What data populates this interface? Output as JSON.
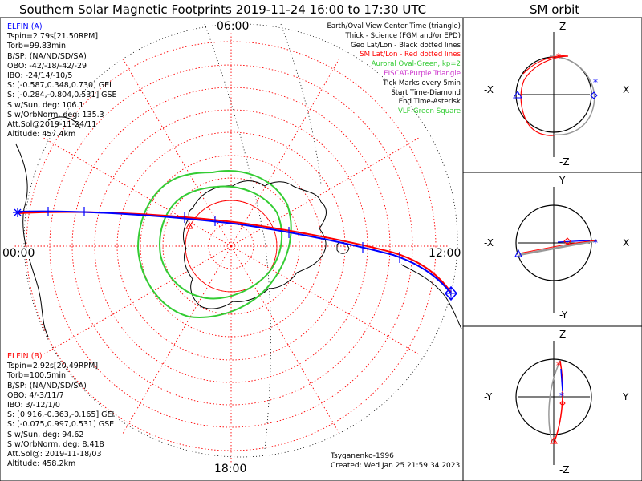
{
  "title": "Southern Solar Magnetic Footprints 2019-11-24 16:00 to 17:30 UTC",
  "orbit_title": "SM orbit",
  "hours": {
    "top": "06:00",
    "left": "00:00",
    "right": "12:00",
    "bottom": "18:00"
  },
  "legend": [
    {
      "text": "Earth/Oval View Center Time (triangle)",
      "color": "#000000"
    },
    {
      "text": "Thick - Science (FGM and/or EPD)",
      "color": "#000000"
    },
    {
      "text": "Geo Lat/Lon - Black dotted lines",
      "color": "#000000"
    },
    {
      "text": "SM Lat/Lon - Red dotted lines",
      "color": "#ff0000"
    },
    {
      "text": "Auroral Oval-Green, kp=2",
      "color": "#33cc33"
    },
    {
      "text": "EISCAT-Purple Triangle",
      "color": "#cc33cc"
    },
    {
      "text": "Tick Marks every 5min",
      "color": "#000000"
    },
    {
      "text": "Start Time-Diamond",
      "color": "#000000"
    },
    {
      "text": "End Time-Asterisk",
      "color": "#000000"
    },
    {
      "text": "VLF-Green Square",
      "color": "#33cc33"
    }
  ],
  "elfin_a": {
    "color": "#0000ff",
    "lines": [
      "ELFIN (A)",
      "Tspin=2.79s[21.50RPM]",
      "Torb=99.83min",
      "B/SP: (NA/ND/SD/SA)",
      "OBO: -42/-18/-42/-29",
      "IBO: -24/14/-10/5",
      "S: [-0.587,0.348,0.730] GEI",
      "S: [-0.284,-0.804,0.531] GSE",
      "S w/Sun, deg: 106.1",
      "S w/OrbNorm, deg: 135.3",
      "Att.Sol@2019-11-24/11",
      "Altitude: 457.4km"
    ]
  },
  "elfin_b": {
    "color": "#ff0000",
    "lines": [
      "ELFIN (B)",
      "Tspin=2.92s[20.49RPM]",
      "Torb=100.5min",
      "B/SP: (NA/ND/SD/SA)",
      "OBO: 4/-3/11/7",
      "IBO: 3/-12/1/0",
      "S: [0.916,-0.363,-0.165] GEI",
      "S: [-0.075,0.997,0.531] GSE",
      "S w/Sun, deg: 94.62",
      "S w/OrbNorm, deg: 8.418",
      "Att.Sol@: 2019-11-18/03",
      "Altitude: 458.2km"
    ]
  },
  "credits": {
    "model": "Tsyganenko-1996",
    "created": "Created: Wed Jan 25 21:59:34 2023"
  },
  "orbit_panels": [
    {
      "top": "Z",
      "bottom": "-Z",
      "left": "-X",
      "right": "X"
    },
    {
      "top": "Y",
      "bottom": "-Y",
      "left": "-X",
      "right": "X"
    },
    {
      "top": "Z",
      "bottom": "-Z",
      "left": "-Y",
      "right": "Y"
    }
  ],
  "colors": {
    "elfin_a": "#0000ff",
    "elfin_b": "#ff0000",
    "oval": "#33cc33",
    "sm_grid": "#ff0000",
    "geo_grid": "#000000",
    "orbit_gray": "#999999"
  }
}
